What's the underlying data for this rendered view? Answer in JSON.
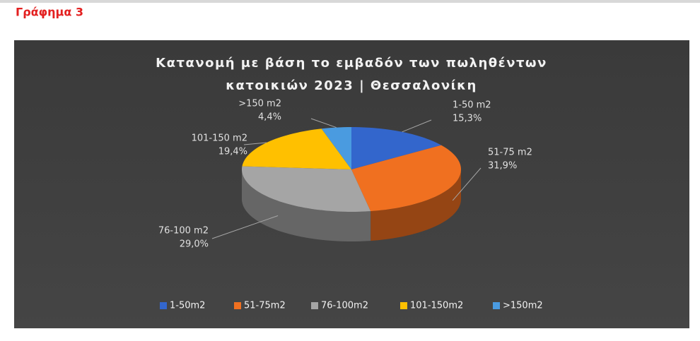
{
  "header": {
    "title": "Γράφημα 3"
  },
  "chart_data": {
    "type": "pie3d",
    "title_lines": [
      "Κατανομή με βάση το εμβαδόν των πωληθέντων",
      "κατοικιών  2023 | Θεσσαλονίκη"
    ],
    "categories": [
      "1-50m2",
      "51-75m2",
      "76-100m2",
      "101-150m2",
      ">150m2"
    ],
    "label_categories": [
      "1-50 m2",
      "51-75 m2",
      "76-100 m2",
      "101-150 m2",
      ">150 m2"
    ],
    "values": [
      15.3,
      31.9,
      29.0,
      19.4,
      4.4
    ],
    "value_labels": [
      "15,3%",
      "31,9%",
      "29,0%",
      "19,4%",
      "4,4%"
    ],
    "colors": [
      "#3366cc",
      "#f07020",
      "#a5a5a5",
      "#ffc000",
      "#4a9be0"
    ],
    "legend": "bottom"
  }
}
